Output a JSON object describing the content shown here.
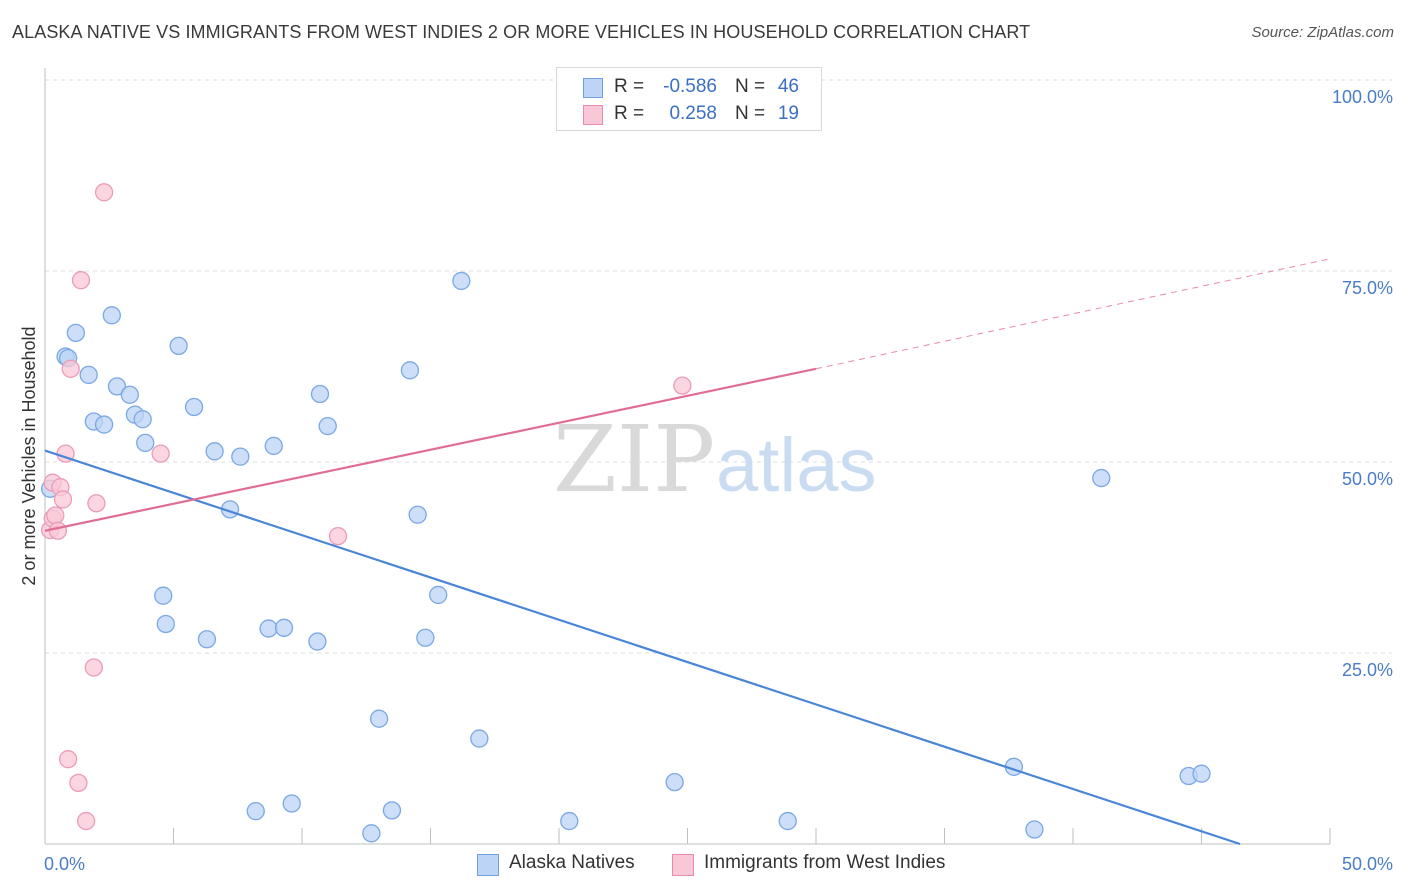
{
  "title": "ALASKA NATIVE VS IMMIGRANTS FROM WEST INDIES 2 OR MORE VEHICLES IN HOUSEHOLD CORRELATION CHART",
  "source": "Source: ZipAtlas.com",
  "watermark": {
    "zip": "ZIP",
    "atlas": "atlas"
  },
  "stats": [
    {
      "r_label": "R =",
      "r_value": "-0.586",
      "n_label": "N =",
      "n_value": "46",
      "color": "#6fa0e0",
      "fill": "#bcd4f5"
    },
    {
      "r_label": "R =",
      "r_value": "0.258",
      "n_label": "N =",
      "n_value": "19",
      "color": "#e98aa8",
      "fill": "#f9c8d7"
    }
  ],
  "legend": [
    {
      "label": "Alaska Natives",
      "color": "#6fa0e0",
      "fill": "#bcd4f5"
    },
    {
      "label": "Immigrants from West Indies",
      "color": "#e98aa8",
      "fill": "#f9c8d7"
    }
  ],
  "chart_data": {
    "type": "scatter",
    "title": "ALASKA NATIVE VS IMMIGRANTS FROM WEST INDIES 2 OR MORE VEHICLES IN HOUSEHOLD CORRELATION CHART",
    "xlabel": "",
    "ylabel": "2 or more Vehicles in Household",
    "xlim": [
      0,
      50
    ],
    "ylim": [
      0,
      100
    ],
    "x_tick_labels": [
      "0.0%",
      "50.0%"
    ],
    "y_ticks": [
      25,
      50,
      75,
      100
    ],
    "y_tick_labels": [
      "25.0%",
      "50.0%",
      "75.0%",
      "100.0%"
    ],
    "grid": true,
    "series": [
      {
        "name": "Alaska Natives",
        "color": "#4a86d8",
        "fill": "#bcd4f5",
        "stroke": "#7aa8e4",
        "points": [
          [
            0.2,
            46.5
          ],
          [
            0.8,
            63.8
          ],
          [
            0.9,
            63.6
          ],
          [
            1.2,
            66.9
          ],
          [
            1.7,
            61.4
          ],
          [
            1.9,
            55.3
          ],
          [
            2.3,
            54.9
          ],
          [
            2.6,
            69.2
          ],
          [
            2.8,
            59.9
          ],
          [
            3.3,
            58.8
          ],
          [
            3.5,
            56.2
          ],
          [
            3.8,
            55.6
          ],
          [
            3.9,
            52.5
          ],
          [
            4.6,
            32.5
          ],
          [
            4.7,
            28.8
          ],
          [
            5.2,
            65.2
          ],
          [
            5.8,
            57.2
          ],
          [
            6.3,
            26.8
          ],
          [
            6.6,
            51.4
          ],
          [
            7.2,
            43.8
          ],
          [
            7.6,
            50.7
          ],
          [
            8.2,
            4.3
          ],
          [
            8.7,
            28.2
          ],
          [
            8.9,
            52.1
          ],
          [
            9.3,
            28.3
          ],
          [
            9.6,
            5.3
          ],
          [
            10.6,
            26.5
          ],
          [
            10.7,
            58.9
          ],
          [
            11.0,
            54.7
          ],
          [
            12.7,
            1.4
          ],
          [
            13.0,
            16.4
          ],
          [
            13.5,
            4.4
          ],
          [
            14.2,
            62.0
          ],
          [
            14.5,
            43.1
          ],
          [
            14.8,
            27.0
          ],
          [
            15.3,
            32.6
          ],
          [
            16.2,
            73.7
          ],
          [
            16.9,
            13.8
          ],
          [
            20.4,
            3.0
          ],
          [
            24.5,
            8.1
          ],
          [
            28.9,
            3.0
          ],
          [
            37.7,
            10.1
          ],
          [
            38.5,
            1.9
          ],
          [
            41.1,
            47.9
          ],
          [
            44.5,
            8.9
          ],
          [
            45.0,
            9.2
          ]
        ]
      },
      {
        "name": "Immigrants from West Indies",
        "color": "#e06d96",
        "fill": "#f9c8d7",
        "stroke": "#eb9cb6",
        "points": [
          [
            0.2,
            41.1
          ],
          [
            0.3,
            47.3
          ],
          [
            0.3,
            42.6
          ],
          [
            0.4,
            43.0
          ],
          [
            0.5,
            41.0
          ],
          [
            0.6,
            46.7
          ],
          [
            0.7,
            45.1
          ],
          [
            0.8,
            51.1
          ],
          [
            0.9,
            11.1
          ],
          [
            1.0,
            62.2
          ],
          [
            1.3,
            8.0
          ],
          [
            1.4,
            73.8
          ],
          [
            1.6,
            3.0
          ],
          [
            1.9,
            23.1
          ],
          [
            2.0,
            44.6
          ],
          [
            2.3,
            85.3
          ],
          [
            4.5,
            51.1
          ],
          [
            11.4,
            40.3
          ],
          [
            24.8,
            60.0
          ]
        ]
      }
    ],
    "trendlines": [
      {
        "series": "Alaska Natives",
        "x_start": 0,
        "y_start": 51.5,
        "x_end": 46.5,
        "y_end": 0,
        "dashed_to": null
      },
      {
        "series": "Immigrants from West Indies",
        "x_start": 0,
        "y_start": 41.0,
        "x_end": 30,
        "y_end": 62.2,
        "dashed_to": [
          50,
          76.6
        ]
      }
    ]
  }
}
